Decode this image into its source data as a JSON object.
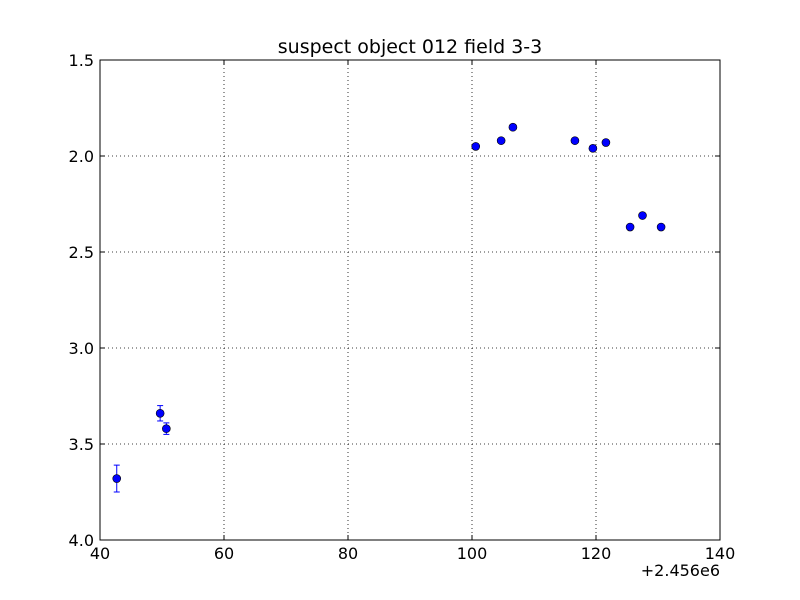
{
  "chart_data": {
    "type": "scatter",
    "title": "suspect object 012 field 3-3",
    "xlabel": "",
    "ylabel": "",
    "x_offset_label": "+2.456e6",
    "xlim": [
      40,
      140
    ],
    "ylim": [
      1.5,
      4.0
    ],
    "y_inverted": true,
    "grid": true,
    "grid_style": "dotted",
    "marker": "circle",
    "error_bars": "vertical",
    "x_ticks": [
      40,
      60,
      80,
      100,
      120,
      140
    ],
    "x_tick_labels": [
      "40",
      "60",
      "80",
      "100",
      "120",
      "140"
    ],
    "y_ticks": [
      1.5,
      2.0,
      2.5,
      3.0,
      3.5,
      4.0
    ],
    "y_tick_labels": [
      "1.5",
      "2.0",
      "2.5",
      "3.0",
      "3.5",
      "4.0"
    ],
    "series": [
      {
        "color": "#0000ff",
        "points": [
          {
            "x": 42.7,
            "y": 3.68,
            "yerr": 0.07
          },
          {
            "x": 49.7,
            "y": 3.34,
            "yerr": 0.04
          },
          {
            "x": 50.7,
            "y": 3.42,
            "yerr": 0.03
          },
          {
            "x": 100.6,
            "y": 1.95,
            "yerr": 0.01
          },
          {
            "x": 104.7,
            "y": 1.92,
            "yerr": 0.01
          },
          {
            "x": 106.6,
            "y": 1.85,
            "yerr": 0.01
          },
          {
            "x": 116.6,
            "y": 1.92,
            "yerr": 0.01
          },
          {
            "x": 119.5,
            "y": 1.96,
            "yerr": 0.01
          },
          {
            "x": 121.6,
            "y": 1.93,
            "yerr": 0.01
          },
          {
            "x": 125.5,
            "y": 2.37,
            "yerr": 0.01
          },
          {
            "x": 127.5,
            "y": 2.31,
            "yerr": 0.01
          },
          {
            "x": 130.5,
            "y": 2.37,
            "yerr": 0.01
          }
        ]
      }
    ]
  }
}
